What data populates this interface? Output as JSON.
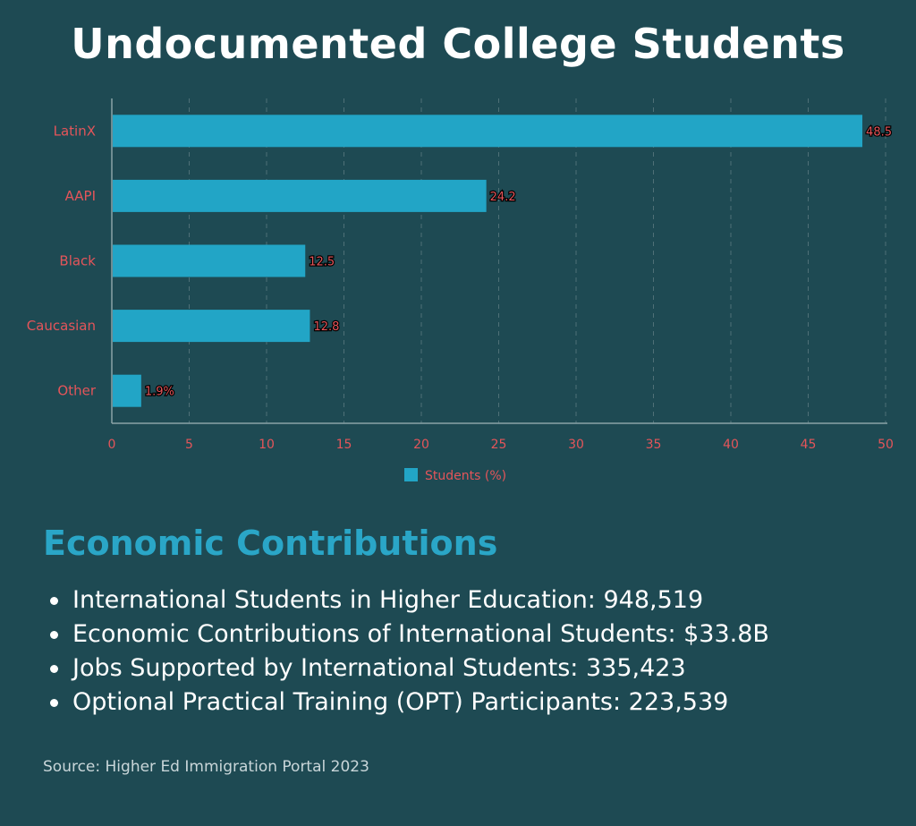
{
  "title": "Undocumented College Students",
  "chart_data": {
    "type": "bar",
    "orientation": "horizontal",
    "categories": [
      "LatinX",
      "AAPI",
      "Black",
      "Caucasian",
      "Other"
    ],
    "series": [
      {
        "name": "Students (%)",
        "values": [
          48.5,
          24.2,
          12.5,
          12.8,
          1.9
        ]
      }
    ],
    "data_labels": [
      "48.5",
      "24.2",
      "12.5",
      "12.8",
      "1.9%"
    ],
    "xlim": [
      0,
      50
    ],
    "x_ticks": [
      0,
      5,
      10,
      15,
      20,
      25,
      30,
      35,
      40,
      45,
      50
    ],
    "grid": "vertical dashed",
    "legend": "bottom-center",
    "bar_color": "#22a5c6",
    "label_color": "#e4555a"
  },
  "economic": {
    "title": "Economic Contributions",
    "items": [
      "International Students in Higher Education: 948,519",
      "Economic Contributions of International Students: $33.8B",
      "Jobs Supported by International Students: 335,423",
      "Optional Practical Training (OPT) Participants: 223,539"
    ]
  },
  "source": "Source: Higher Ed Immigration Portal 2023"
}
